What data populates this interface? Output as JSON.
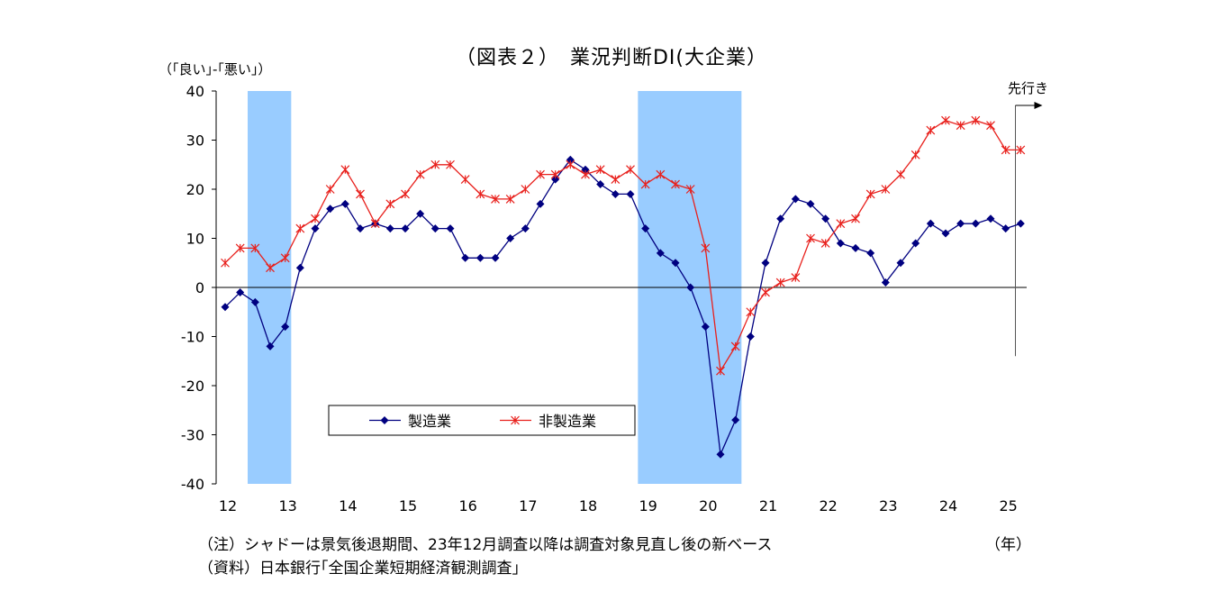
{
  "chart_data": {
    "type": "line",
    "title": "（図表２）　業況判断DI(大企業）",
    "ylabel": "（｢良い｣-｢悪い｣）",
    "xlabel": "（年）",
    "ylim": [
      -40,
      40
    ],
    "yticks": [
      40,
      30,
      20,
      10,
      0,
      -10,
      -20,
      -30,
      -40
    ],
    "xticks": [
      "12",
      "13",
      "14",
      "15",
      "16",
      "17",
      "18",
      "19",
      "20",
      "21",
      "22",
      "23",
      "24",
      "25"
    ],
    "forecast_label": "先行き",
    "shaded_periods": [
      {
        "start": "2012Q2",
        "end": "2012Q4"
      },
      {
        "start": "2018Q4",
        "end": "2020Q2"
      }
    ],
    "x": [
      "2012Q1",
      "2012Q2",
      "2012Q3",
      "2012Q4",
      "2013Q1",
      "2013Q2",
      "2013Q3",
      "2013Q4",
      "2014Q1",
      "2014Q2",
      "2014Q3",
      "2014Q4",
      "2015Q1",
      "2015Q2",
      "2015Q3",
      "2015Q4",
      "2016Q1",
      "2016Q2",
      "2016Q3",
      "2016Q4",
      "2017Q1",
      "2017Q2",
      "2017Q3",
      "2017Q4",
      "2018Q1",
      "2018Q2",
      "2018Q3",
      "2018Q4",
      "2019Q1",
      "2019Q2",
      "2019Q3",
      "2019Q4",
      "2020Q1",
      "2020Q2",
      "2020Q3",
      "2020Q4",
      "2021Q1",
      "2021Q2",
      "2021Q3",
      "2021Q4",
      "2022Q1",
      "2022Q2",
      "2022Q3",
      "2022Q4",
      "2023Q1",
      "2023Q2",
      "2023Q3",
      "2023Q4",
      "2024Q1",
      "2024Q2",
      "2024Q3",
      "2024Q4",
      "2025Q1",
      "先行き"
    ],
    "series": [
      {
        "name": "製造業",
        "color": "#000080",
        "marker": "diamond",
        "values": [
          -4,
          -1,
          -3,
          -12,
          -8,
          4,
          12,
          16,
          17,
          12,
          13,
          12,
          12,
          15,
          12,
          12,
          6,
          6,
          6,
          10,
          12,
          17,
          22,
          26,
          24,
          21,
          19,
          19,
          12,
          7,
          5,
          0,
          -8,
          -34,
          -27,
          -10,
          5,
          14,
          18,
          17,
          14,
          9,
          8,
          7,
          1,
          5,
          9,
          13,
          11,
          13,
          13,
          14,
          12,
          13
        ]
      },
      {
        "name": "非製造業",
        "color": "#e8201c",
        "marker": "asterisk",
        "values": [
          5,
          8,
          8,
          4,
          6,
          12,
          14,
          20,
          24,
          19,
          13,
          17,
          19,
          23,
          25,
          25,
          22,
          19,
          18,
          18,
          20,
          23,
          23,
          25,
          23,
          24,
          22,
          24,
          21,
          23,
          21,
          20,
          8,
          -17,
          -12,
          -5,
          -1,
          1,
          2,
          10,
          9,
          13,
          14,
          19,
          20,
          23,
          27,
          32,
          34,
          33,
          34,
          33,
          28,
          28
        ]
      }
    ]
  },
  "notes": {
    "note1": "（注）シャドーは景気後退期間、23年12月調査以降は調査対象見直し後の新ベース",
    "note2": "（資料）日本銀行｢全国企業短期経済観測調査｣"
  },
  "colors": {
    "shade": "#99ccff",
    "axis": "#000000"
  }
}
